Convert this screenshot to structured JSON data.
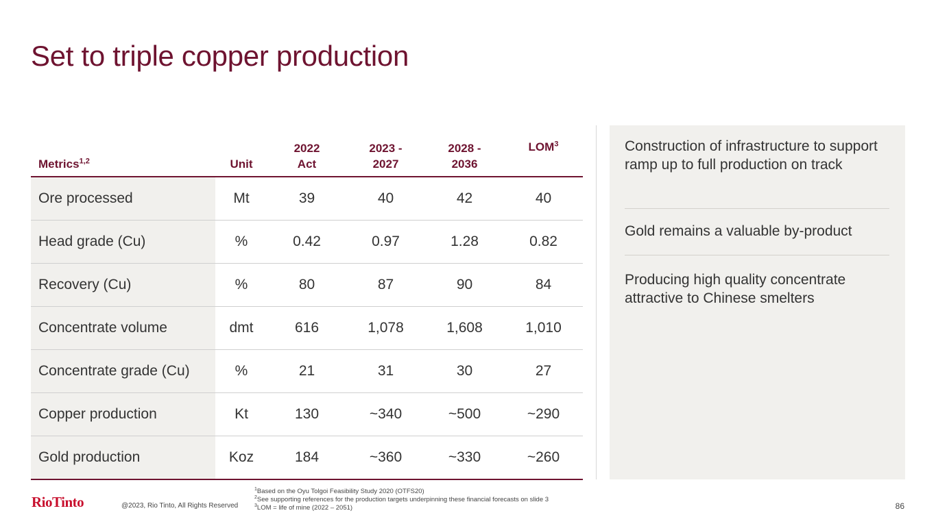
{
  "title": "Set to triple copper production",
  "table": {
    "headers": {
      "metrics": "Metrics",
      "metrics_sup": "1,2",
      "unit": "Unit",
      "c2022_line1": "2022",
      "c2022_line2": "Act",
      "c2023_line1": "2023 -",
      "c2023_line2": "2027",
      "c2028_line1": "2028 -",
      "c2028_line2": "2036",
      "lom": "LOM",
      "lom_sup": "3"
    },
    "rows": [
      {
        "metric": "Ore processed",
        "unit": "Mt",
        "v2022": "39",
        "v2023": "40",
        "v2028": "42",
        "lom": "40"
      },
      {
        "metric": "Head grade (Cu)",
        "unit": "%",
        "v2022": "0.42",
        "v2023": "0.97",
        "v2028": "1.28",
        "lom": "0.82"
      },
      {
        "metric": "Recovery (Cu)",
        "unit": "%",
        "v2022": "80",
        "v2023": "87",
        "v2028": "90",
        "lom": "84"
      },
      {
        "metric": "Concentrate volume",
        "unit": "dmt",
        "v2022": "616",
        "v2023": "1,078",
        "v2028": "1,608",
        "lom": "1,010"
      },
      {
        "metric": "Concentrate grade (Cu)",
        "unit": "%",
        "v2022": "21",
        "v2023": "31",
        "v2028": "30",
        "lom": "27"
      },
      {
        "metric": "Copper production",
        "unit": "Kt",
        "v2022": "130",
        "v2023": "~340",
        "v2028": "~500",
        "lom": "~290"
      },
      {
        "metric": "Gold production",
        "unit": "Koz",
        "v2022": "184",
        "v2023": "~360",
        "v2028": "~330",
        "lom": "~260"
      }
    ]
  },
  "panel": {
    "point1": "Construction of infrastructure to support ramp up to full production on track",
    "point2": "Gold remains a valuable by-product",
    "point3": "Producing high quality concentrate attractive to Chinese smelters"
  },
  "footer": {
    "logo": "RioTinto",
    "copyright": "@2023, Rio Tinto, All Rights Reserved",
    "note1_sup": "1",
    "note1": "Based on the Oyu Tolgoi Feasibility Study 2020 (OTFS20)",
    "note2_sup": "2",
    "note2": "See supporting references for the production targets underpinning these financial forecasts on slide 3",
    "note3_sup": "3",
    "note3": "LOM = life of mine (2022 – 2051)",
    "page": "86"
  },
  "colors": {
    "accent": "#6e1330",
    "logo": "#c8102e",
    "panel_bg": "#f1f0ed"
  }
}
